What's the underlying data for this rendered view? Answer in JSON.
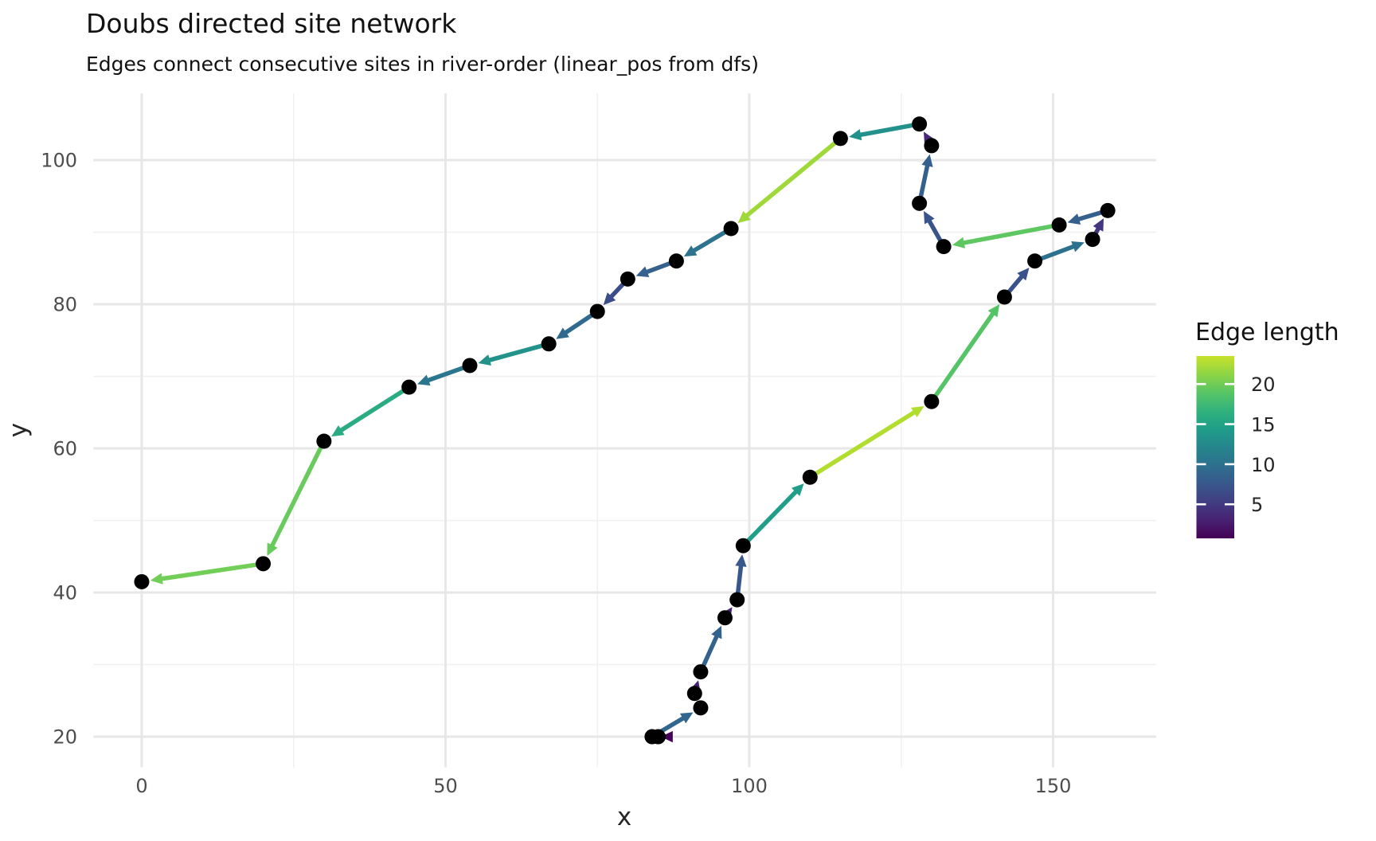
{
  "title": "Doubs directed site network",
  "subtitle": "Edges connect consecutive sites in river-order (linear_pos from dfs)",
  "chart_data": {
    "type": "scatter",
    "title": "Doubs directed site network",
    "subtitle": "Edges connect consecutive sites in river-order (linear_pos from dfs)",
    "xlabel": "x",
    "ylabel": "y",
    "xlim": [
      -7.95,
      166.95
    ],
    "ylim": [
      15.75,
      109.25
    ],
    "x_major_ticks": [
      0,
      50,
      100,
      150
    ],
    "x_minor_ticks": [
      25,
      75,
      125
    ],
    "y_major_ticks": [
      20,
      40,
      60,
      80,
      100
    ],
    "y_minor_ticks": [
      30,
      50,
      70,
      90
    ],
    "grid": "on",
    "point_color": "#000000",
    "sites_in_river_order": [
      [
        85,
        20
      ],
      [
        84,
        20
      ],
      [
        92,
        24
      ],
      [
        91,
        26
      ],
      [
        92,
        29
      ],
      [
        96,
        36.5
      ],
      [
        98,
        39
      ],
      [
        99,
        46.5
      ],
      [
        110,
        56
      ],
      [
        130,
        66.5
      ],
      [
        142,
        81
      ],
      [
        147,
        86
      ],
      [
        156.5,
        89
      ],
      [
        159,
        93
      ],
      [
        151,
        91
      ],
      [
        132,
        88
      ],
      [
        128,
        94
      ],
      [
        130,
        102
      ],
      [
        128,
        105
      ],
      [
        115,
        103
      ],
      [
        97,
        90.5
      ],
      [
        88,
        86
      ],
      [
        80,
        83.5
      ],
      [
        75,
        79
      ],
      [
        67,
        74.5
      ],
      [
        54,
        71.5
      ],
      [
        44,
        68.5
      ],
      [
        30,
        61
      ],
      [
        20,
        44
      ],
      [
        0,
        41.5
      ]
    ],
    "edge_rule": "directed edge from each site to the next in river order, colored by euclidean edge length",
    "legend": {
      "title": "Edge length",
      "position": "right",
      "ticks": [
        20,
        15,
        10,
        5
      ],
      "bar_domain": [
        0.75,
        23.5
      ],
      "palette": "viridis",
      "viridis_end": 0.92,
      "viridis_hex": [
        "#440154",
        "#482878",
        "#3E4989",
        "#31688E",
        "#26828E",
        "#1F9E89",
        "#35B779",
        "#6DCD59",
        "#B4DE2C",
        "#FDE725"
      ]
    }
  }
}
